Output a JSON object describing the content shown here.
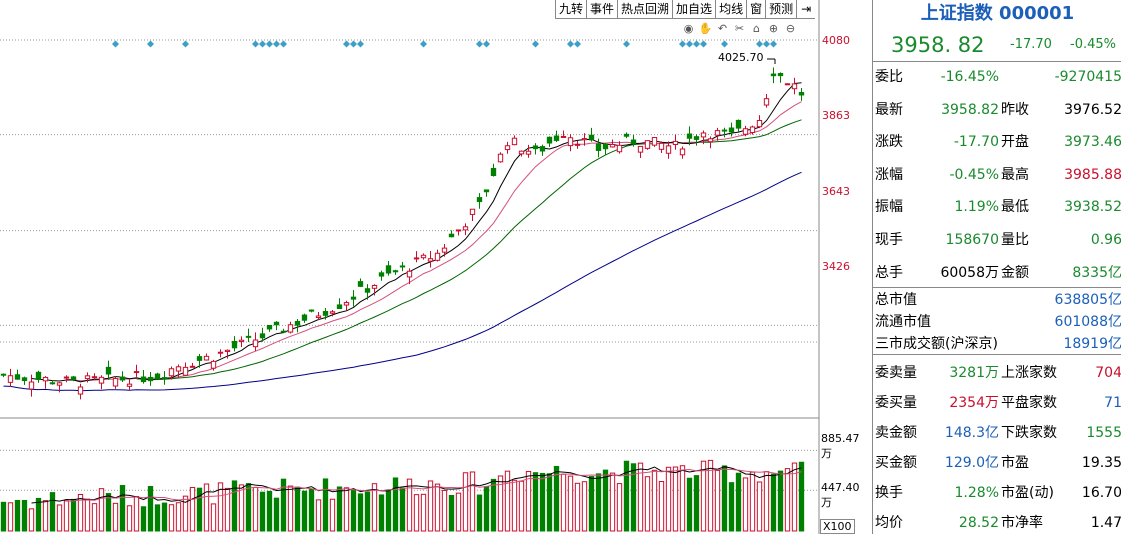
{
  "toolbar": {
    "items": [
      "九转",
      "事件",
      "热点回溯",
      "加自选",
      "均线",
      "窗",
      "预测"
    ],
    "arrow": "⇥"
  },
  "chart_icons": [
    "eye-icon",
    "hand-icon",
    "undo-icon",
    "scissors-icon",
    "home-icon",
    "zoom-in-icon",
    "zoom-out-icon"
  ],
  "chart_data": {
    "type": "candlestick",
    "price_axis": {
      "ticks": [
        "4080",
        "3863",
        "3643",
        "3426"
      ],
      "tick_values": [
        4080,
        3863,
        3643,
        3426
      ],
      "range": [
        3209,
        4080
      ]
    },
    "volume_axis": {
      "ticks": [
        "885.47万",
        "447.40万"
      ],
      "tick_values": [
        885.47,
        447.4
      ],
      "range": [
        0,
        1000
      ],
      "unit_label": "X100"
    },
    "max_price_label": "4025.70",
    "candle_count": 115,
    "colors": {
      "up": "#c8102e",
      "down": "#008000",
      "ma5": "#000000",
      "ma10": "#d4507a",
      "ma20": "#006400",
      "ma60": "#00008b",
      "event": "#3aa0c8",
      "grid": "#9a9a9a"
    },
    "event_markers": [
      16,
      21,
      26,
      36,
      37,
      38,
      39,
      40,
      49,
      50,
      51,
      60,
      68,
      69,
      76,
      81,
      82,
      89,
      97,
      98,
      99,
      100,
      103,
      108,
      109,
      110
    ]
  },
  "quote": {
    "title": "上证指数 000001",
    "price": "3958. 82",
    "change": "-17.70",
    "change_pct": "-0.45%"
  },
  "rows": [
    {
      "l1": "委比",
      "v1": "-16.45%",
      "c1": "green",
      "l2": "",
      "v2": "-9270415",
      "c2": "green"
    },
    {
      "l1": "最新",
      "v1": "3958.82",
      "c1": "green",
      "l2": "昨收",
      "v2": "3976.52",
      "c2": "black"
    },
    {
      "l1": "涨跌",
      "v1": "-17.70",
      "c1": "green",
      "l2": "开盘",
      "v2": "3973.46",
      "c2": "green"
    },
    {
      "l1": "涨幅",
      "v1": "-0.45%",
      "c1": "green",
      "l2": "最高",
      "v2": "3985.88",
      "c2": "red"
    },
    {
      "l1": "振幅",
      "v1": "1.19%",
      "c1": "green",
      "l2": "最低",
      "v2": "3938.52",
      "c2": "green"
    },
    {
      "l1": "现手",
      "v1": "158670",
      "c1": "green",
      "l2": "量比",
      "v2": "0.96",
      "c2": "green"
    },
    {
      "l1": "总手",
      "v1": "60058万",
      "c1": "black",
      "l2": "金额",
      "v2": "8335亿",
      "c2": "green"
    }
  ],
  "market": [
    {
      "label": "总市值",
      "value": "638805亿"
    },
    {
      "label": "流通市值",
      "value": "601088亿"
    },
    {
      "label": "三市成交额(沪深京)",
      "value": "18919亿"
    }
  ],
  "rows2": [
    {
      "l1": "委卖量",
      "v1": "3281万",
      "c1": "green",
      "l2": "上涨家数",
      "v2": "704",
      "c2": "red"
    },
    {
      "l1": "委买量",
      "v1": "2354万",
      "c1": "red",
      "l2": "平盘家数",
      "v2": "71",
      "c2": "blue"
    },
    {
      "l1": "卖金额",
      "v1": "148.3亿",
      "c1": "blue",
      "l2": "下跌家数",
      "v2": "1555",
      "c2": "green"
    },
    {
      "l1": "买金额",
      "v1": "129.0亿",
      "c1": "blue",
      "l2": "市盈",
      "v2": "19.35",
      "c2": "black"
    },
    {
      "l1": "换手",
      "v1": "1.28%",
      "c1": "green",
      "l2": "市盈(动)",
      "v2": "16.70",
      "c2": "black"
    },
    {
      "l1": "均价",
      "v1": "28.52",
      "c1": "green",
      "l2": "市净率",
      "v2": "1.47",
      "c2": "black"
    }
  ]
}
